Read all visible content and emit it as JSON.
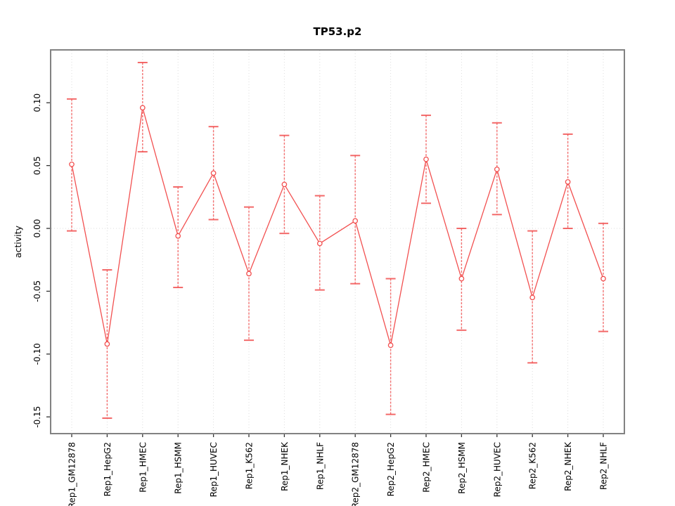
{
  "chart_data": {
    "type": "line",
    "title": "TP53.p2",
    "xlabel": "",
    "ylabel": "activity",
    "categories": [
      "Rep1_GM12878",
      "Rep1_HepG2",
      "Rep1_HMEC",
      "Rep1_HSMM",
      "Rep1_HUVEC",
      "Rep1_K562",
      "Rep1_NHEK",
      "Rep1_NHLF",
      "Rep2_GM12878",
      "Rep2_HepG2",
      "Rep2_HMEC",
      "Rep2_HSMM",
      "Rep2_HUVEC",
      "Rep2_K562",
      "Rep2_NHEK",
      "Rep2_NHLF"
    ],
    "series": [
      {
        "name": "activity",
        "marker": "open-circle",
        "values": [
          0.051,
          -0.092,
          0.096,
          -0.006,
          0.044,
          -0.036,
          0.035,
          -0.012,
          0.006,
          -0.093,
          0.055,
          -0.04,
          0.047,
          -0.055,
          0.037,
          -0.04
        ],
        "ci_high": [
          0.103,
          -0.033,
          0.132,
          0.033,
          0.081,
          0.017,
          0.074,
          0.026,
          0.058,
          -0.04,
          0.09,
          0.0,
          0.084,
          -0.002,
          0.075,
          0.004
        ],
        "ci_low": [
          -0.002,
          -0.151,
          0.061,
          -0.047,
          0.007,
          -0.089,
          -0.004,
          -0.049,
          -0.044,
          -0.148,
          0.02,
          -0.081,
          0.011,
          -0.107,
          0.0,
          -0.082
        ]
      }
    ],
    "ylim": [
      -0.163,
      0.142
    ],
    "y_ticks": [
      0.1,
      0.05,
      0.0,
      -0.05,
      -0.1,
      -0.15
    ],
    "y_tick_labels": [
      "0.10",
      "0.05",
      "0.00",
      "-0.05",
      "-0.10",
      "-0.15"
    ],
    "grid": {
      "vertical": "dotted line at each category",
      "horizontal": "dotted line at y = 0"
    },
    "legend": "none",
    "colors": {
      "series": "#f25050",
      "error_bar": "#f25050",
      "grid": "#dcdcdc",
      "box": "#828282",
      "tick": "#333333",
      "text": "#000000",
      "background": "#ffffff"
    }
  }
}
